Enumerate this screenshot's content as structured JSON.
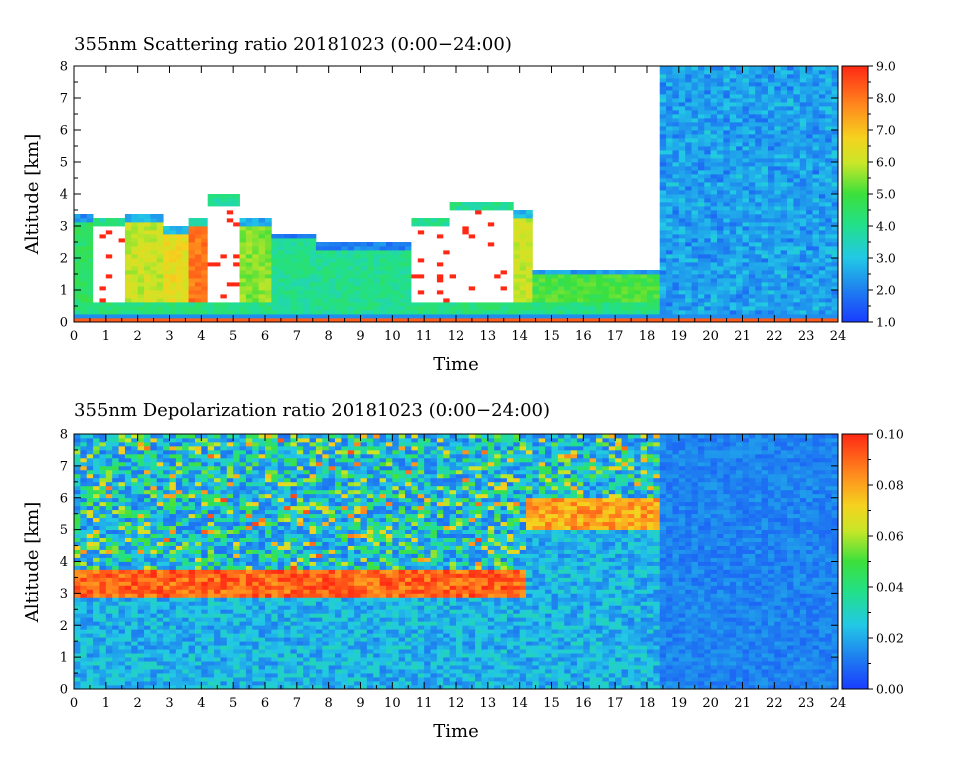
{
  "chart_data": [
    {
      "type": "heatmap",
      "title": "355nm Scattering ratio   20181023 (0:00−24:00)",
      "xlabel": "Time",
      "ylabel": "Altitude [km]",
      "xlim": [
        0,
        24
      ],
      "ylim": [
        0,
        8
      ],
      "x_ticks": [
        "0",
        "1",
        "2",
        "3",
        "4",
        "5",
        "6",
        "7",
        "8",
        "9",
        "10",
        "11",
        "12",
        "13",
        "14",
        "15",
        "16",
        "17",
        "18",
        "19",
        "20",
        "21",
        "22",
        "23",
        "24"
      ],
      "y_ticks": [
        "0",
        "1",
        "2",
        "3",
        "4",
        "5",
        "6",
        "7",
        "8"
      ],
      "colorbar": {
        "range": [
          1.0,
          9.0
        ],
        "ticks": [
          "1.0",
          "2.0",
          "3.0",
          "4.0",
          "5.0",
          "6.0",
          "7.0",
          "8.0",
          "9.0"
        ]
      },
      "features": [
        {
          "t0": 0.0,
          "t1": 0.6,
          "top": 3.4,
          "level": 4.5
        },
        {
          "t0": 0.6,
          "t1": 1.7,
          "top": 3.3,
          "level": 9.5
        },
        {
          "t0": 1.7,
          "t1": 2.9,
          "top": 3.4,
          "level": 6.0
        },
        {
          "t0": 2.9,
          "t1": 3.6,
          "top": 3.0,
          "level": 6.5
        },
        {
          "t0": 3.6,
          "t1": 4.3,
          "top": 3.3,
          "level": 8.0
        },
        {
          "t0": 4.3,
          "t1": 5.3,
          "top": 4.0,
          "level": 9.5
        },
        {
          "t0": 5.3,
          "t1": 6.3,
          "top": 3.3,
          "level": 5.5
        },
        {
          "t0": 6.3,
          "t1": 7.6,
          "top": 2.8,
          "level": 4.0
        },
        {
          "t0": 7.6,
          "t1": 10.6,
          "top": 2.5,
          "level": 4.0
        },
        {
          "t0": 10.6,
          "t1": 11.8,
          "top": 3.3,
          "level": 9.5
        },
        {
          "t0": 11.8,
          "t1": 13.8,
          "top": 3.8,
          "level": 9.5
        },
        {
          "t0": 13.8,
          "t1": 14.5,
          "top": 3.5,
          "level": 6.0
        },
        {
          "t0": 14.5,
          "t1": 18.5,
          "top": 1.6,
          "level": 5.0
        },
        {
          "t0": 18.5,
          "t1": 24.0,
          "top": 8.0,
          "level": 2.0
        }
      ]
    },
    {
      "type": "heatmap",
      "title": "355nm Depolarization ratio   20181023 (0:00−24:00)",
      "xlabel": "Time",
      "ylabel": "Altitude [km]",
      "xlim": [
        0,
        24
      ],
      "ylim": [
        0,
        8
      ],
      "x_ticks": [
        "0",
        "1",
        "2",
        "3",
        "4",
        "5",
        "6",
        "7",
        "8",
        "9",
        "10",
        "11",
        "12",
        "13",
        "14",
        "15",
        "16",
        "17",
        "18",
        "19",
        "20",
        "21",
        "22",
        "23",
        "24"
      ],
      "y_ticks": [
        "0",
        "1",
        "2",
        "3",
        "4",
        "5",
        "6",
        "7",
        "8"
      ],
      "colorbar": {
        "range": [
          0.0,
          0.1
        ],
        "ticks": [
          "0.00",
          "0.02",
          "0.04",
          "0.06",
          "0.08",
          "0.10"
        ]
      },
      "features": [
        {
          "t0": 0.0,
          "t1": 14.3,
          "layer_alt": 3.3,
          "level": 0.09
        },
        {
          "t0": 14.3,
          "t1": 18.5,
          "layer_alt": 5.5,
          "level": 0.08
        },
        {
          "t0": 18.5,
          "t1": 24.0,
          "layer_alt": 0.0,
          "level": 0.01
        }
      ]
    }
  ]
}
